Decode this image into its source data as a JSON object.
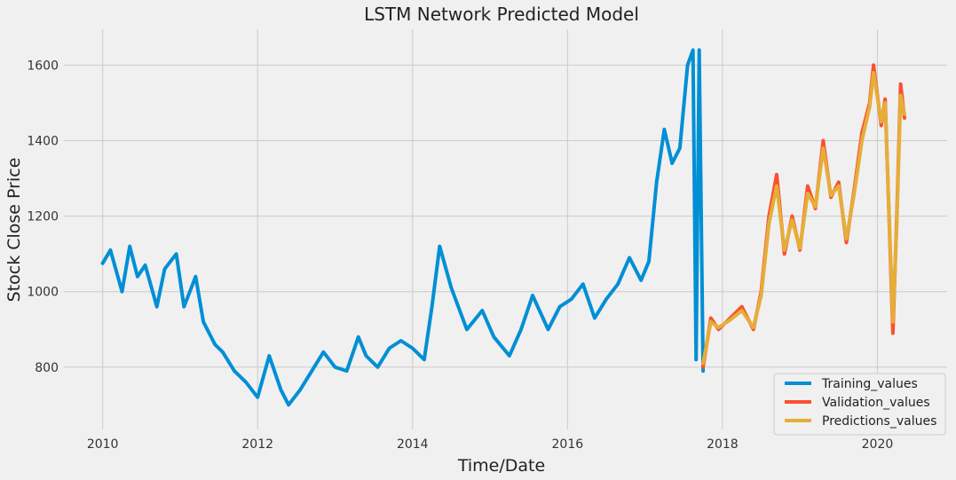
{
  "chart_data": {
    "type": "line",
    "title": "LSTM Network Predicted Model",
    "xlabel": "Time/Date",
    "ylabel": "Stock Close Price",
    "xlim": [
      2009.5,
      2020.9
    ],
    "ylim": [
      635,
      1695
    ],
    "x_ticks": [
      2010,
      2012,
      2014,
      2016,
      2018,
      2020
    ],
    "x_tick_labels": [
      "2010",
      "2012",
      "2014",
      "2016",
      "2018",
      "2020"
    ],
    "y_ticks": [
      800,
      1000,
      1200,
      1400,
      1600
    ],
    "y_tick_labels": [
      "800",
      "1000",
      "1200",
      "1400",
      "1600"
    ],
    "grid": true,
    "legend_position": "bottom-right",
    "series": [
      {
        "name": "Training_values",
        "color": "#008fd5",
        "x": [
          2010.0,
          2010.1,
          2010.25,
          2010.35,
          2010.45,
          2010.55,
          2010.7,
          2010.8,
          2010.95,
          2011.05,
          2011.2,
          2011.3,
          2011.45,
          2011.55,
          2011.7,
          2011.85,
          2012.0,
          2012.15,
          2012.3,
          2012.4,
          2012.55,
          2012.7,
          2012.85,
          2013.0,
          2013.15,
          2013.3,
          2013.4,
          2013.55,
          2013.7,
          2013.85,
          2014.0,
          2014.15,
          2014.25,
          2014.35,
          2014.5,
          2014.7,
          2014.9,
          2015.05,
          2015.25,
          2015.4,
          2015.55,
          2015.75,
          2015.9,
          2016.05,
          2016.2,
          2016.35,
          2016.5,
          2016.65,
          2016.8,
          2016.95,
          2017.05,
          2017.15,
          2017.25,
          2017.35,
          2017.45,
          2017.55,
          2017.62,
          2017.66,
          2017.7,
          2017.75
        ],
        "y": [
          1075,
          1110,
          1000,
          1120,
          1040,
          1070,
          960,
          1060,
          1100,
          960,
          1040,
          920,
          860,
          840,
          790,
          760,
          720,
          830,
          740,
          700,
          740,
          790,
          840,
          800,
          790,
          880,
          830,
          800,
          850,
          870,
          850,
          820,
          960,
          1120,
          1010,
          900,
          950,
          880,
          830,
          900,
          990,
          900,
          960,
          980,
          1020,
          930,
          980,
          1020,
          1090,
          1030,
          1080,
          1290,
          1430,
          1340,
          1380,
          1600,
          1640,
          820,
          1640,
          790
        ]
      },
      {
        "name": "Validation_values",
        "color": "#fc4f30",
        "x": [
          2017.75,
          2017.85,
          2017.95,
          2018.1,
          2018.25,
          2018.4,
          2018.5,
          2018.6,
          2018.7,
          2018.8,
          2018.9,
          2019.0,
          2019.1,
          2019.2,
          2019.3,
          2019.4,
          2019.5,
          2019.6,
          2019.7,
          2019.8,
          2019.9,
          2019.95,
          2020.05,
          2020.1,
          2020.2,
          2020.25,
          2020.3,
          2020.35
        ],
        "y": [
          800,
          930,
          900,
          930,
          960,
          900,
          1000,
          1200,
          1310,
          1100,
          1200,
          1110,
          1280,
          1220,
          1400,
          1250,
          1290,
          1130,
          1270,
          1420,
          1500,
          1600,
          1440,
          1510,
          890,
          1200,
          1550,
          1460
        ]
      },
      {
        "name": "Predictions_values",
        "color": "#e5ae38",
        "x": [
          2017.75,
          2017.85,
          2017.95,
          2018.1,
          2018.25,
          2018.4,
          2018.5,
          2018.6,
          2018.7,
          2018.8,
          2018.9,
          2019.0,
          2019.1,
          2019.2,
          2019.3,
          2019.4,
          2019.5,
          2019.6,
          2019.7,
          2019.8,
          2019.9,
          2019.95,
          2020.05,
          2020.1,
          2020.2,
          2020.25,
          2020.3,
          2020.35
        ],
        "y": [
          810,
          920,
          905,
          925,
          950,
          905,
          990,
          1180,
          1280,
          1110,
          1190,
          1115,
          1260,
          1225,
          1380,
          1255,
          1280,
          1140,
          1260,
          1400,
          1490,
          1580,
          1450,
          1500,
          920,
          1180,
          1520,
          1470
        ]
      }
    ]
  }
}
